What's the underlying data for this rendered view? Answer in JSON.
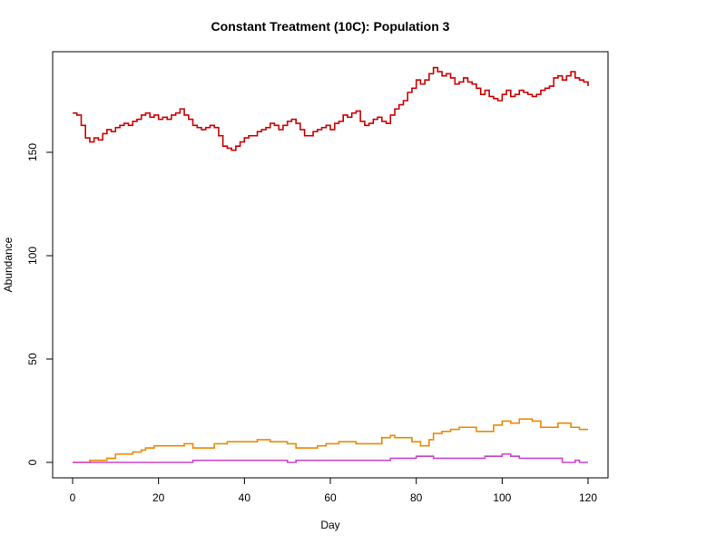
{
  "chart_data": {
    "type": "line",
    "title": "Constant Treatment (10C): Population 3",
    "xlabel": "Day",
    "ylabel": "Abundance",
    "xlim": [
      0,
      120
    ],
    "ylim": [
      0,
      190
    ],
    "x_ticks": [
      "0",
      "20",
      "40",
      "60",
      "80",
      "100",
      "120"
    ],
    "y_ticks": [
      "0",
      "50",
      "100",
      "150"
    ],
    "grid": false,
    "legend": "none",
    "series": [
      {
        "color": "#cc0000",
        "step": true,
        "points": [
          [
            0,
            169
          ],
          [
            1,
            168
          ],
          [
            2,
            163
          ],
          [
            3,
            157
          ],
          [
            4,
            155
          ],
          [
            5,
            157
          ],
          [
            6,
            156
          ],
          [
            7,
            159
          ],
          [
            8,
            161
          ],
          [
            9,
            160
          ],
          [
            10,
            162
          ],
          [
            11,
            163
          ],
          [
            12,
            164
          ],
          [
            13,
            163
          ],
          [
            14,
            165
          ],
          [
            15,
            166
          ],
          [
            16,
            168
          ],
          [
            17,
            169
          ],
          [
            18,
            167
          ],
          [
            19,
            168
          ],
          [
            20,
            166
          ],
          [
            21,
            167
          ],
          [
            22,
            166
          ],
          [
            23,
            168
          ],
          [
            24,
            169
          ],
          [
            25,
            171
          ],
          [
            26,
            168
          ],
          [
            27,
            166
          ],
          [
            28,
            163
          ],
          [
            29,
            162
          ],
          [
            30,
            161
          ],
          [
            31,
            162
          ],
          [
            32,
            163
          ],
          [
            33,
            162
          ],
          [
            34,
            158
          ],
          [
            35,
            153
          ],
          [
            36,
            152
          ],
          [
            37,
            151
          ],
          [
            38,
            153
          ],
          [
            39,
            155
          ],
          [
            40,
            157
          ],
          [
            41,
            158
          ],
          [
            42,
            158
          ],
          [
            43,
            160
          ],
          [
            44,
            161
          ],
          [
            45,
            162
          ],
          [
            46,
            164
          ],
          [
            47,
            163
          ],
          [
            48,
            161
          ],
          [
            49,
            163
          ],
          [
            50,
            165
          ],
          [
            51,
            166
          ],
          [
            52,
            164
          ],
          [
            53,
            161
          ],
          [
            54,
            158
          ],
          [
            55,
            158
          ],
          [
            56,
            160
          ],
          [
            57,
            161
          ],
          [
            58,
            162
          ],
          [
            59,
            163
          ],
          [
            60,
            161
          ],
          [
            61,
            164
          ],
          [
            62,
            165
          ],
          [
            63,
            168
          ],
          [
            64,
            167
          ],
          [
            65,
            169
          ],
          [
            66,
            170
          ],
          [
            67,
            165
          ],
          [
            68,
            163
          ],
          [
            69,
            164
          ],
          [
            70,
            166
          ],
          [
            71,
            167
          ],
          [
            72,
            165
          ],
          [
            73,
            164
          ],
          [
            74,
            168
          ],
          [
            75,
            171
          ],
          [
            76,
            173
          ],
          [
            77,
            175
          ],
          [
            78,
            179
          ],
          [
            79,
            181
          ],
          [
            80,
            185
          ],
          [
            81,
            183
          ],
          [
            82,
            185
          ],
          [
            83,
            188
          ],
          [
            84,
            191
          ],
          [
            85,
            189
          ],
          [
            86,
            187
          ],
          [
            87,
            188
          ],
          [
            88,
            186
          ],
          [
            89,
            183
          ],
          [
            90,
            184
          ],
          [
            91,
            186
          ],
          [
            92,
            184
          ],
          [
            93,
            183
          ],
          [
            94,
            181
          ],
          [
            95,
            178
          ],
          [
            96,
            180
          ],
          [
            97,
            177
          ],
          [
            98,
            176
          ],
          [
            99,
            175
          ],
          [
            100,
            178
          ],
          [
            101,
            180
          ],
          [
            102,
            177
          ],
          [
            103,
            178
          ],
          [
            104,
            180
          ],
          [
            105,
            179
          ],
          [
            106,
            178
          ],
          [
            107,
            177
          ],
          [
            108,
            178
          ],
          [
            109,
            180
          ],
          [
            110,
            181
          ],
          [
            111,
            182
          ],
          [
            112,
            186
          ],
          [
            113,
            187
          ],
          [
            114,
            185
          ],
          [
            115,
            187
          ],
          [
            116,
            189
          ],
          [
            117,
            186
          ],
          [
            118,
            185
          ],
          [
            119,
            184
          ],
          [
            120,
            182
          ]
        ]
      },
      {
        "color": "#ee8800",
        "step": true,
        "points": [
          [
            0,
            0
          ],
          [
            4,
            1
          ],
          [
            8,
            2
          ],
          [
            10,
            4
          ],
          [
            14,
            5
          ],
          [
            16,
            6
          ],
          [
            17,
            7
          ],
          [
            19,
            8
          ],
          [
            26,
            9
          ],
          [
            28,
            7
          ],
          [
            33,
            9
          ],
          [
            36,
            10
          ],
          [
            43,
            11
          ],
          [
            46,
            10
          ],
          [
            50,
            9
          ],
          [
            52,
            7
          ],
          [
            57,
            8
          ],
          [
            59,
            9
          ],
          [
            62,
            10
          ],
          [
            66,
            9
          ],
          [
            72,
            12
          ],
          [
            74,
            13
          ],
          [
            75,
            12
          ],
          [
            79,
            10
          ],
          [
            81,
            8
          ],
          [
            83,
            11
          ],
          [
            84,
            14
          ],
          [
            86,
            15
          ],
          [
            88,
            16
          ],
          [
            90,
            17
          ],
          [
            94,
            15
          ],
          [
            98,
            18
          ],
          [
            100,
            20
          ],
          [
            102,
            19
          ],
          [
            104,
            21
          ],
          [
            107,
            20
          ],
          [
            109,
            17
          ],
          [
            113,
            19
          ],
          [
            116,
            17
          ],
          [
            118,
            16
          ],
          [
            120,
            16
          ]
        ]
      },
      {
        "color": "#cc44cc",
        "step": true,
        "points": [
          [
            0,
            0
          ],
          [
            28,
            1
          ],
          [
            50,
            0
          ],
          [
            52,
            1
          ],
          [
            74,
            2
          ],
          [
            80,
            3
          ],
          [
            84,
            2
          ],
          [
            96,
            3
          ],
          [
            100,
            4
          ],
          [
            102,
            3
          ],
          [
            104,
            2
          ],
          [
            114,
            0
          ],
          [
            117,
            1
          ],
          [
            118,
            0
          ],
          [
            120,
            0
          ]
        ]
      }
    ]
  }
}
